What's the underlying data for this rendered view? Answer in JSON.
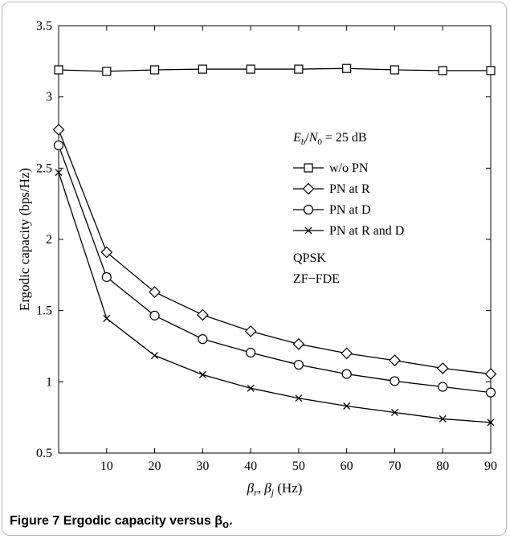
{
  "caption": {
    "label": "Figure 7",
    "text": "Ergodic capacity versus β",
    "subscript": "o",
    "period": "."
  },
  "chart_data": {
    "type": "line",
    "xlabel": "βr, βj (Hz)",
    "ylabel": "Ergodic capacity (bps/Hz)",
    "xlim": [
      0,
      90
    ],
    "ylim": [
      0.5,
      3.5
    ],
    "x_ticks": [
      10,
      20,
      30,
      40,
      50,
      60,
      70,
      80,
      90
    ],
    "y_ticks": [
      0.5,
      1,
      1.5,
      2,
      2.5,
      3,
      3.5
    ],
    "x": [
      0,
      10,
      20,
      30,
      40,
      50,
      60,
      70,
      80,
      90
    ],
    "series": [
      {
        "name": "w/o PN",
        "marker": "square",
        "values": [
          3.19,
          3.18,
          3.19,
          3.195,
          3.195,
          3.195,
          3.2,
          3.19,
          3.185,
          3.185
        ]
      },
      {
        "name": "PN at R",
        "marker": "diamond",
        "values": [
          2.77,
          1.91,
          1.63,
          1.47,
          1.355,
          1.265,
          1.2,
          1.15,
          1.095,
          1.055
        ]
      },
      {
        "name": "PN at D",
        "marker": "circle",
        "values": [
          2.66,
          1.735,
          1.465,
          1.3,
          1.205,
          1.12,
          1.055,
          1.005,
          0.965,
          0.925
        ]
      },
      {
        "name": "PN at R and D",
        "marker": "x",
        "values": [
          2.47,
          1.445,
          1.185,
          1.05,
          0.955,
          0.885,
          0.83,
          0.785,
          0.74,
          0.715
        ]
      }
    ],
    "annotations": {
      "condition": "Eb/N0 = 25 dB",
      "modulation": "QPSK",
      "equalizer": "ZF−FDE"
    },
    "legend_position": "right",
    "grid": false
  }
}
